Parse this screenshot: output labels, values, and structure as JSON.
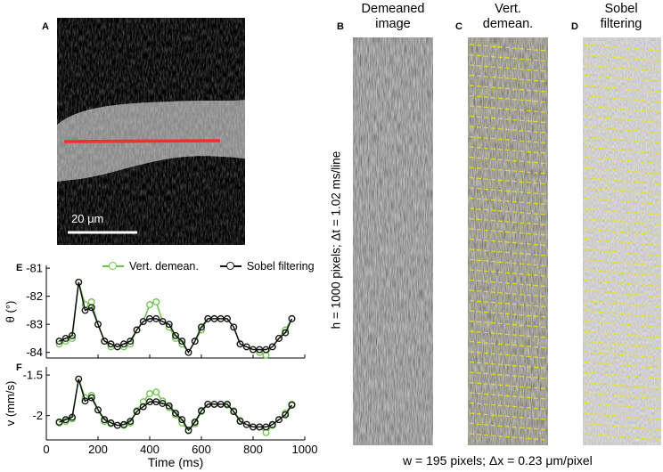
{
  "panels": {
    "A": {
      "letter": "A",
      "scale_bar_label": "20 μm",
      "line_color": "#ff2a2a"
    },
    "B": {
      "letter": "B",
      "title_line1": "Demeaned",
      "title_line2": "image"
    },
    "C": {
      "letter": "C",
      "title_line1": "Vert.",
      "title_line2": "demean."
    },
    "D": {
      "letter": "D",
      "title_line1": "Sobel",
      "title_line2": "filtering"
    },
    "E": {
      "letter": "E"
    },
    "F": {
      "letter": "F"
    }
  },
  "kymograph_axis_label": "h = 1000 pixels; Δt = 1.02 ms/line",
  "kymograph_bottom_caption": "w = 195 pixels; Δx = 0.23 μm/pixel",
  "legend": {
    "vert": {
      "label": "Vert. demean.",
      "color": "#6cc24a"
    },
    "sobel": {
      "label": "Sobel filtering",
      "color": "#111111"
    }
  },
  "chart_data": [
    {
      "type": "line",
      "panel": "E",
      "ylabel": "θ (°)",
      "xlabel": "",
      "xlim": [
        0,
        1000
      ],
      "ylim": [
        -84.2,
        -80.9
      ],
      "yticks": [
        -81,
        -82,
        -83,
        -84
      ],
      "xticks": [
        0,
        200,
        400,
        600,
        800,
        1000
      ],
      "x": [
        50,
        75,
        100,
        125,
        150,
        175,
        200,
        225,
        250,
        275,
        300,
        325,
        350,
        375,
        400,
        425,
        450,
        475,
        500,
        525,
        550,
        575,
        600,
        625,
        650,
        675,
        700,
        725,
        750,
        775,
        800,
        825,
        850,
        875,
        900,
        925,
        950
      ],
      "series": [
        {
          "name": "Vert. demean.",
          "color": "#6cc24a",
          "values": [
            -83.7,
            -83.6,
            -83.5,
            -81.5,
            -82.3,
            -82.2,
            -83.0,
            -83.6,
            -83.8,
            -83.8,
            -83.8,
            -83.7,
            -83.2,
            -82.9,
            -82.3,
            -82.2,
            -82.9,
            -83.1,
            -83.5,
            -83.7,
            -84.0,
            -83.6,
            -83.2,
            -82.8,
            -82.8,
            -82.8,
            -82.8,
            -83.1,
            -83.7,
            -83.8,
            -83.9,
            -84.0,
            -84.1,
            -83.8,
            -83.5,
            -83.2,
            -82.8
          ]
        },
        {
          "name": "Sobel filtering",
          "color": "#111111",
          "values": [
            -83.6,
            -83.5,
            -83.4,
            -81.5,
            -82.5,
            -82.4,
            -83.0,
            -83.6,
            -83.7,
            -83.8,
            -83.7,
            -83.6,
            -83.2,
            -82.9,
            -82.8,
            -82.8,
            -82.9,
            -83.0,
            -83.4,
            -83.6,
            -84.0,
            -83.6,
            -83.1,
            -82.8,
            -82.8,
            -82.8,
            -82.8,
            -83.1,
            -83.7,
            -83.8,
            -83.9,
            -83.9,
            -83.9,
            -83.8,
            -83.5,
            -83.3,
            -82.8
          ]
        }
      ]
    },
    {
      "type": "line",
      "panel": "F",
      "ylabel": "v (mm/s)",
      "xlabel": "Time (ms)",
      "xlim": [
        0,
        1000
      ],
      "ylim": [
        -2.3,
        -1.4
      ],
      "yticks": [
        -1.5,
        -2
      ],
      "ytick_labels": [
        "-1.5",
        "-2"
      ],
      "xticks": [
        0,
        200,
        400,
        600,
        800,
        1000
      ],
      "x": [
        50,
        75,
        100,
        125,
        150,
        175,
        200,
        225,
        250,
        275,
        300,
        325,
        350,
        375,
        400,
        425,
        450,
        475,
        500,
        525,
        550,
        575,
        600,
        625,
        650,
        675,
        700,
        725,
        750,
        775,
        800,
        825,
        850,
        875,
        900,
        925,
        950
      ],
      "series": [
        {
          "name": "Vert. demean.",
          "color": "#6cc24a",
          "values": [
            -2.09,
            -2.07,
            -2.04,
            -1.55,
            -1.78,
            -1.75,
            -1.93,
            -2.07,
            -2.1,
            -2.12,
            -2.12,
            -2.09,
            -1.94,
            -1.83,
            -1.73,
            -1.71,
            -1.82,
            -1.9,
            -1.99,
            -2.09,
            -2.19,
            -2.1,
            -1.95,
            -1.86,
            -1.86,
            -1.86,
            -1.87,
            -1.94,
            -2.06,
            -2.11,
            -2.14,
            -2.14,
            -2.21,
            -2.12,
            -2.05,
            -1.97,
            -1.86
          ]
        },
        {
          "name": "Sobel filtering",
          "color": "#111111",
          "values": [
            -2.08,
            -2.05,
            -2.02,
            -1.55,
            -1.82,
            -1.78,
            -1.93,
            -2.05,
            -2.09,
            -2.12,
            -2.11,
            -2.07,
            -1.95,
            -1.89,
            -1.83,
            -1.83,
            -1.85,
            -1.88,
            -1.97,
            -2.05,
            -2.18,
            -2.08,
            -1.94,
            -1.86,
            -1.86,
            -1.86,
            -1.86,
            -1.95,
            -2.07,
            -2.11,
            -2.14,
            -2.14,
            -2.14,
            -2.11,
            -2.05,
            -1.99,
            -1.87
          ]
        }
      ]
    }
  ]
}
